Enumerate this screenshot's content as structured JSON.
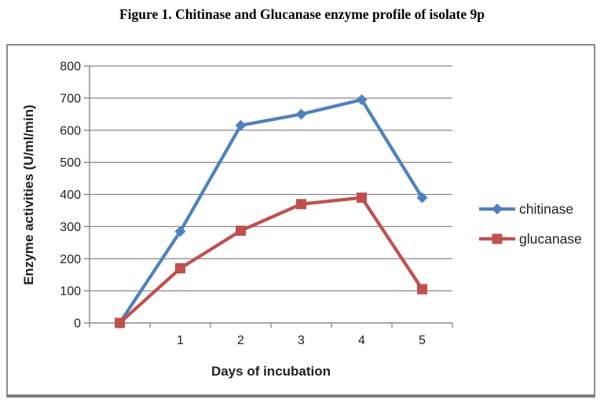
{
  "figure_title": "Figure 1. Chitinase and Glucanase enzyme profile of isolate 9p",
  "style": {
    "grid_color": "#878787",
    "axis_color": "#878787",
    "text_color": "#1f1f1f",
    "frame_border_color": "#8b8b8b",
    "chitinase_color": "#4F81BD",
    "glucanase_color": "#C0504D"
  },
  "chart_data": {
    "type": "line",
    "categories": [
      "",
      "1",
      "2",
      "3",
      "4",
      "5"
    ],
    "series": [
      {
        "name": "chitinase",
        "marker": "diamond",
        "color": "#4F81BD",
        "values": [
          0,
          285,
          615,
          650,
          695,
          390
        ]
      },
      {
        "name": "glucanase",
        "marker": "square",
        "color": "#C0504D",
        "values": [
          0,
          170,
          287,
          370,
          390,
          105
        ]
      }
    ],
    "title": "",
    "xlabel": "Days of incubation",
    "ylabel": "Enzyme activities (U/ml/min)",
    "ylim": [
      0,
      800
    ],
    "ytick_step": 100,
    "yticks": [
      0,
      100,
      200,
      300,
      400,
      500,
      600,
      700,
      800
    ],
    "grid": true,
    "legend_position": "right",
    "legend": [
      "chitinase",
      "glucanase"
    ]
  }
}
